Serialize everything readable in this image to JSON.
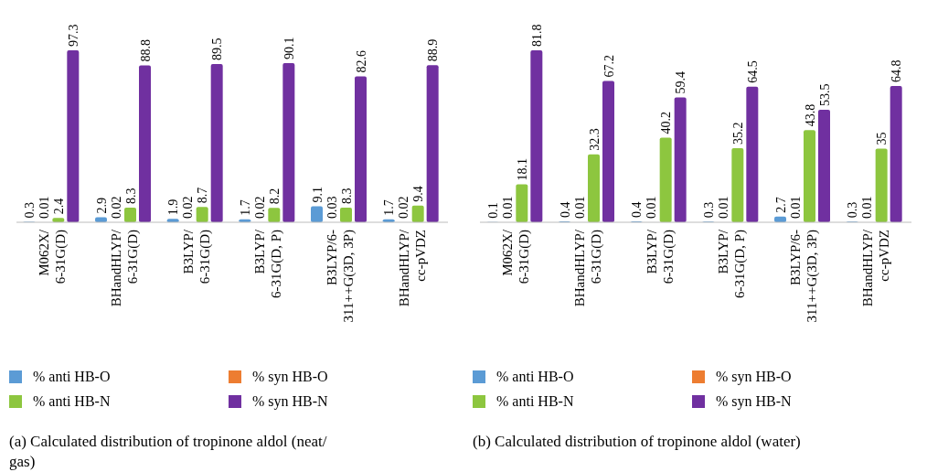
{
  "chart_data": [
    {
      "type": "bar",
      "title": "(a)  Calculated distribution of tropinone aldol (neat/ gas)",
      "categories": [
        "M062X/\n6-31G(D)",
        "BHandHLYP/\n6-31G(D)",
        "B3LYP/\n6-31G(D)",
        "B3LYP/\n6-31G(D, P)",
        "B3LYP/6-\n311++G(3D, 3P)",
        "BHandHLYP/\ncc-pVDZ"
      ],
      "relative": false,
      "data_labels": true,
      "legend": "bottom",
      "series": [
        {
          "name": "% anti HB-O",
          "color": "#5b9bd5",
          "values": [
            0.3,
            2.9,
            1.9,
            1.7,
            9.1,
            1.7
          ]
        },
        {
          "name": "% syn HB-O",
          "color": "#ed7d31",
          "values": [
            0.01,
            0.02,
            0.02,
            0.02,
            0.03,
            0.02
          ]
        },
        {
          "name": "% anti HB-N",
          "color": "#8dc63f",
          "values": [
            2.4,
            8.3,
            8.7,
            8.2,
            8.3,
            9.4
          ]
        },
        {
          "name": "% syn HB-N",
          "color": "#7030a0",
          "values": [
            97.3,
            88.8,
            89.5,
            90.1,
            82.6,
            88.9
          ]
        }
      ]
    },
    {
      "type": "bar",
      "title": "(b)  Calculated distribution of tropinone aldol (water)",
      "categories": [
        "M062X/\n6-31G(D)",
        "BHandHLYP/\n6-31G(D)",
        "B3LYP/\n6-31G(D)",
        "B3LYP/\n6-31G(D, P)",
        "B3LYP/6-\n311++G(3D, 3P)",
        "BHandHLYP/\ncc-pVDZ"
      ],
      "data_labels": true,
      "legend": "bottom",
      "series": [
        {
          "name": "% anti HB-O",
          "color": "#5b9bd5",
          "values": [
            0.1,
            0.4,
            0.4,
            0.3,
            2.7,
            0.3
          ]
        },
        {
          "name": "% syn HB-O",
          "color": "#ed7d31",
          "values": [
            0.01,
            0.01,
            0.01,
            0.01,
            0.01,
            0.01
          ]
        },
        {
          "name": "% anti HB-N",
          "color": "#8dc63f",
          "values": [
            18.1,
            32.3,
            40.2,
            35.2,
            43.8,
            35
          ]
        },
        {
          "name": "% syn HB-N",
          "color": "#7030a0",
          "values": [
            81.8,
            67.2,
            59.4,
            64.5,
            53.5,
            64.8
          ]
        }
      ]
    }
  ]
}
